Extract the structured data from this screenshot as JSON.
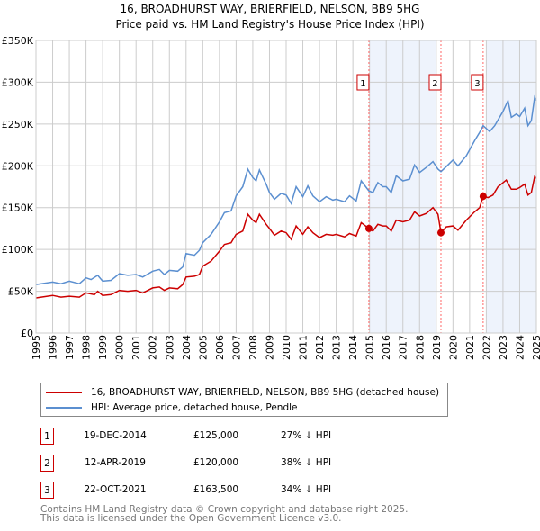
{
  "title": "16, BROADHURST WAY, BRIERFIELD, NELSON, BB9 5HG",
  "subtitle": "Price paid vs. HM Land Registry's House Price Index (HPI)",
  "colors": {
    "property": "#cc0000",
    "hpi": "#5b8fd0",
    "shade": "#eef3fc",
    "grid": "#cccccc"
  },
  "chart_data": {
    "type": "line",
    "title": "16, BROADHURST WAY, BRIERFIELD, NELSON, BB9 5HG",
    "xlim": [
      1995,
      2025
    ],
    "ylim": [
      0,
      350000
    ],
    "grid": true,
    "y_ticks": [
      0,
      50000,
      100000,
      150000,
      200000,
      250000,
      300000,
      350000
    ],
    "y_tick_labels": [
      "£0",
      "£50K",
      "£100K",
      "£150K",
      "£200K",
      "£250K",
      "£300K",
      "£350K"
    ],
    "x_ticks": [
      "1995",
      "1996",
      "1997",
      "1998",
      "1999",
      "2000",
      "2001",
      "2002",
      "2003",
      "2004",
      "2005",
      "2006",
      "2007",
      "2008",
      "2009",
      "2010",
      "2011",
      "2012",
      "2013",
      "2014",
      "2015",
      "2016",
      "2017",
      "2018",
      "2019",
      "2020",
      "2021",
      "2022",
      "2023",
      "2024",
      "2025"
    ],
    "shaded_ranges": [
      [
        2015,
        2019
      ],
      [
        2022,
        2025
      ]
    ],
    "series": [
      {
        "name": "16, BROADHURST WAY, BRIERFIELD, NELSON, BB9 5HG (detached house)",
        "points": [
          [
            1995,
            42000
          ],
          [
            1996,
            45000
          ],
          [
            1996.5,
            43000
          ],
          [
            1997,
            44000
          ],
          [
            1997.6,
            43000
          ],
          [
            1998,
            48000
          ],
          [
            1998.5,
            46000
          ],
          [
            1998.7,
            50000
          ],
          [
            1999,
            45000
          ],
          [
            1999.5,
            46000
          ],
          [
            2000,
            51000
          ],
          [
            2000.5,
            50000
          ],
          [
            2001,
            51000
          ],
          [
            2001.4,
            48000
          ],
          [
            2002,
            54000
          ],
          [
            2002.4,
            55000
          ],
          [
            2002.7,
            51000
          ],
          [
            2003,
            54000
          ],
          [
            2003.5,
            53000
          ],
          [
            2003.8,
            58000
          ],
          [
            2004,
            67000
          ],
          [
            2004.5,
            68000
          ],
          [
            2004.8,
            70000
          ],
          [
            2005,
            80000
          ],
          [
            2005.5,
            86000
          ],
          [
            2006,
            98000
          ],
          [
            2006.3,
            106000
          ],
          [
            2006.7,
            108000
          ],
          [
            2007,
            118000
          ],
          [
            2007.4,
            122000
          ],
          [
            2007.7,
            142000
          ],
          [
            2008,
            135000
          ],
          [
            2008.2,
            132000
          ],
          [
            2008.4,
            142000
          ],
          [
            2008.8,
            130000
          ],
          [
            2009,
            125000
          ],
          [
            2009.3,
            117000
          ],
          [
            2009.7,
            122000
          ],
          [
            2010,
            120000
          ],
          [
            2010.3,
            112000
          ],
          [
            2010.6,
            128000
          ],
          [
            2011,
            118000
          ],
          [
            2011.3,
            127000
          ],
          [
            2011.6,
            120000
          ],
          [
            2012,
            114000
          ],
          [
            2012.4,
            118000
          ],
          [
            2012.8,
            117000
          ],
          [
            2013,
            118000
          ],
          [
            2013.5,
            115000
          ],
          [
            2013.8,
            119000
          ],
          [
            2014.2,
            116000
          ],
          [
            2014.5,
            132000
          ],
          [
            2014.96,
            125000
          ],
          [
            2015.2,
            122000
          ],
          [
            2015.5,
            130000
          ],
          [
            2015.8,
            128000
          ],
          [
            2016,
            128000
          ],
          [
            2016.3,
            122000
          ],
          [
            2016.6,
            135000
          ],
          [
            2017,
            133000
          ],
          [
            2017.4,
            135000
          ],
          [
            2017.7,
            145000
          ],
          [
            2018,
            140000
          ],
          [
            2018.4,
            143000
          ],
          [
            2018.8,
            150000
          ],
          [
            2019.1,
            142000
          ],
          [
            2019.28,
            120000
          ],
          [
            2019.6,
            127000
          ],
          [
            2020,
            128000
          ],
          [
            2020.3,
            123000
          ],
          [
            2020.8,
            135000
          ],
          [
            2021.3,
            145000
          ],
          [
            2021.6,
            150000
          ],
          [
            2021.81,
            163500
          ],
          [
            2022.1,
            162000
          ],
          [
            2022.4,
            165000
          ],
          [
            2022.7,
            175000
          ],
          [
            2023.2,
            183000
          ],
          [
            2023.5,
            172000
          ],
          [
            2023.8,
            172000
          ],
          [
            2024,
            174000
          ],
          [
            2024.3,
            178000
          ],
          [
            2024.5,
            165000
          ],
          [
            2024.7,
            168000
          ],
          [
            2024.9,
            187000
          ],
          [
            2025,
            185000
          ]
        ]
      },
      {
        "name": "HPI: Average price, detached house, Pendle",
        "points": [
          [
            1995,
            58000
          ],
          [
            1996,
            61000
          ],
          [
            1996.5,
            59000
          ],
          [
            1997,
            62000
          ],
          [
            1997.6,
            59000
          ],
          [
            1998,
            66000
          ],
          [
            1998.3,
            64000
          ],
          [
            1998.7,
            69000
          ],
          [
            1999,
            62000
          ],
          [
            1999.5,
            63000
          ],
          [
            2000,
            71000
          ],
          [
            2000.5,
            69000
          ],
          [
            2001,
            70000
          ],
          [
            2001.4,
            67000
          ],
          [
            2002,
            74000
          ],
          [
            2002.4,
            76000
          ],
          [
            2002.7,
            70000
          ],
          [
            2003,
            75000
          ],
          [
            2003.5,
            74000
          ],
          [
            2003.8,
            79000
          ],
          [
            2004,
            95000
          ],
          [
            2004.5,
            93000
          ],
          [
            2004.8,
            99000
          ],
          [
            2005,
            108000
          ],
          [
            2005.5,
            118000
          ],
          [
            2006,
            133000
          ],
          [
            2006.3,
            144000
          ],
          [
            2006.7,
            146000
          ],
          [
            2007,
            164000
          ],
          [
            2007.4,
            175000
          ],
          [
            2007.7,
            196000
          ],
          [
            2008,
            186000
          ],
          [
            2008.2,
            182000
          ],
          [
            2008.4,
            195000
          ],
          [
            2008.8,
            178000
          ],
          [
            2009,
            168000
          ],
          [
            2009.3,
            160000
          ],
          [
            2009.7,
            167000
          ],
          [
            2010,
            165000
          ],
          [
            2010.3,
            155000
          ],
          [
            2010.6,
            175000
          ],
          [
            2011,
            163000
          ],
          [
            2011.3,
            176000
          ],
          [
            2011.6,
            164000
          ],
          [
            2012,
            157000
          ],
          [
            2012.4,
            163000
          ],
          [
            2012.8,
            159000
          ],
          [
            2013,
            160000
          ],
          [
            2013.5,
            157000
          ],
          [
            2013.8,
            164000
          ],
          [
            2014.2,
            158000
          ],
          [
            2014.5,
            182000
          ],
          [
            2014.96,
            170000
          ],
          [
            2015.2,
            168000
          ],
          [
            2015.5,
            180000
          ],
          [
            2015.8,
            175000
          ],
          [
            2016,
            175000
          ],
          [
            2016.3,
            168000
          ],
          [
            2016.6,
            188000
          ],
          [
            2017,
            182000
          ],
          [
            2017.4,
            184000
          ],
          [
            2017.7,
            201000
          ],
          [
            2018,
            192000
          ],
          [
            2018.4,
            198000
          ],
          [
            2018.8,
            205000
          ],
          [
            2019.1,
            196000
          ],
          [
            2019.28,
            193000
          ],
          [
            2019.6,
            199000
          ],
          [
            2020,
            207000
          ],
          [
            2020.3,
            200000
          ],
          [
            2020.8,
            212000
          ],
          [
            2021.3,
            230000
          ],
          [
            2021.6,
            240000
          ],
          [
            2021.81,
            248000
          ],
          [
            2022.2,
            241000
          ],
          [
            2022.5,
            248000
          ],
          [
            2023,
            265000
          ],
          [
            2023.3,
            278000
          ],
          [
            2023.5,
            258000
          ],
          [
            2023.8,
            262000
          ],
          [
            2024,
            259000
          ],
          [
            2024.3,
            269000
          ],
          [
            2024.5,
            248000
          ],
          [
            2024.7,
            254000
          ],
          [
            2024.9,
            282000
          ],
          [
            2025,
            278000
          ]
        ]
      }
    ],
    "sales": [
      {
        "label": "1",
        "year": 2014.96,
        "price": 125000
      },
      {
        "label": "2",
        "year": 2019.28,
        "price": 120000
      },
      {
        "label": "3",
        "year": 2021.81,
        "price": 163500
      }
    ]
  },
  "legend": {
    "property": "16, BROADHURST WAY, BRIERFIELD, NELSON, BB9 5HG (detached house)",
    "hpi": "HPI: Average price, detached house, Pendle"
  },
  "transactions": [
    {
      "num": "1",
      "date": "19-DEC-2014",
      "price": "£125,000",
      "hpi": "27% ↓ HPI"
    },
    {
      "num": "2",
      "date": "12-APR-2019",
      "price": "£120,000",
      "hpi": "38% ↓ HPI"
    },
    {
      "num": "3",
      "date": "22-OCT-2021",
      "price": "£163,500",
      "hpi": "34% ↓ HPI"
    }
  ],
  "footer": {
    "line1": "Contains HM Land Registry data © Crown copyright and database right 2025.",
    "line2": "This data is licensed under the Open Government Licence v3.0."
  }
}
